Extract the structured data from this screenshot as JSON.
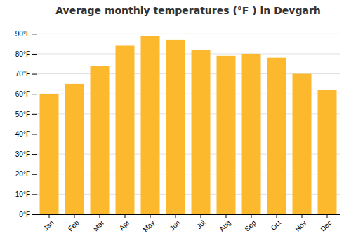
{
  "chart_data": {
    "type": "bar",
    "title": "Average monthly temperatures (°F ) in Devgarh",
    "categories": [
      "Jan",
      "Feb",
      "Mar",
      "Apr",
      "May",
      "Jun",
      "Jul",
      "Aug",
      "Sep",
      "Oct",
      "Nov",
      "Dec"
    ],
    "values": [
      60,
      65,
      74,
      84,
      89,
      87,
      82,
      79,
      80,
      78,
      70,
      62
    ],
    "color": "#FDB92E",
    "ylim": [
      0,
      95
    ],
    "yticks": [
      {
        "value": 0,
        "label": "0°F"
      },
      {
        "value": 10,
        "label": "10°F"
      },
      {
        "value": 20,
        "label": "20°F"
      },
      {
        "value": 30,
        "label": "30°F"
      },
      {
        "value": 40,
        "label": "40°F"
      },
      {
        "value": 50,
        "label": "50°F"
      },
      {
        "value": 60,
        "label": "60°F"
      },
      {
        "value": 70,
        "label": "70°F"
      },
      {
        "value": 80,
        "label": "80°F"
      },
      {
        "value": 90,
        "label": "90°F"
      }
    ],
    "grid": true
  }
}
